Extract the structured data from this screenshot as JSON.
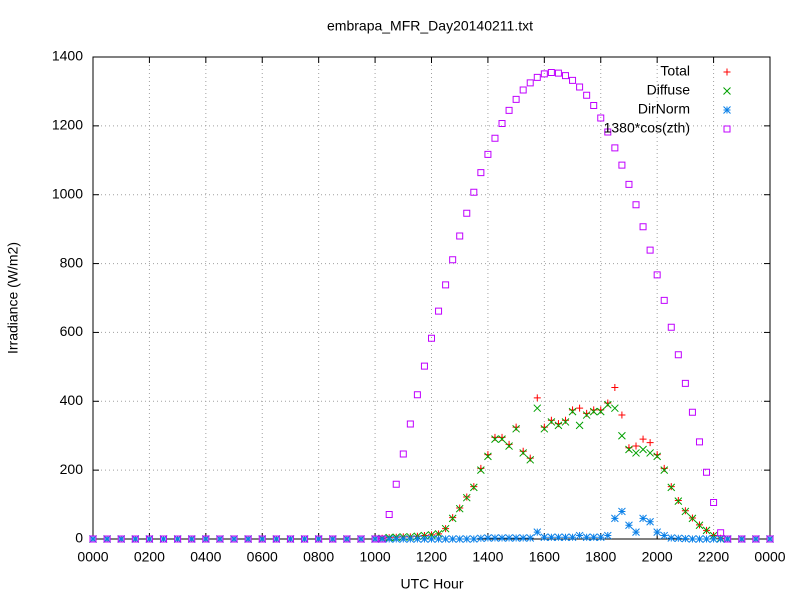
{
  "chart_data": {
    "type": "scatter",
    "title": "embrapa_MFR_Day20140211.txt",
    "x_label": "UTC Hour",
    "y_label": "Irradiance (W/m2)",
    "x": [
      0,
      0.5,
      1,
      1.5,
      2,
      2.5,
      3,
      3.5,
      4,
      4.5,
      5,
      5.5,
      6,
      6.5,
      7,
      7.5,
      8,
      8.5,
      9,
      9.5,
      10,
      10.25,
      10.5,
      10.75,
      11,
      11.25,
      11.5,
      11.75,
      12,
      12.25,
      12.5,
      12.75,
      13,
      13.25,
      13.5,
      13.75,
      14,
      14.25,
      14.5,
      14.75,
      15,
      15.25,
      15.5,
      15.75,
      16,
      16.25,
      16.5,
      16.75,
      17,
      17.25,
      17.5,
      17.75,
      18,
      18.25,
      18.5,
      18.75,
      19,
      19.25,
      19.5,
      19.75,
      20,
      20.25,
      20.5,
      20.75,
      21,
      21.25,
      21.5,
      21.75,
      22,
      22.25,
      22.5,
      23,
      23.5,
      24
    ],
    "series": [
      {
        "name": "Total",
        "color": "#ff0000",
        "marker": "plus",
        "values": [
          0,
          0,
          0,
          0,
          0,
          0,
          0,
          0,
          0,
          0,
          0,
          0,
          0,
          0,
          0,
          0,
          0,
          0,
          0,
          0,
          0,
          2,
          4,
          5,
          6,
          6,
          8,
          10,
          12,
          15,
          30,
          62,
          90,
          122,
          152,
          205,
          245,
          295,
          295,
          275,
          325,
          255,
          235,
          410,
          325,
          345,
          335,
          345,
          375,
          380,
          365,
          375,
          375,
          395,
          440,
          360,
          265,
          270,
          290,
          280,
          245,
          205,
          152,
          112,
          82,
          61,
          41,
          25,
          10,
          2,
          0,
          0,
          0,
          0
        ]
      },
      {
        "name": "Diffuse",
        "color": "#00a000",
        "marker": "cross",
        "values": [
          0,
          0,
          0,
          0,
          0,
          0,
          0,
          0,
          0,
          0,
          0,
          0,
          0,
          0,
          0,
          0,
          0,
          0,
          0,
          0,
          0,
          2,
          4,
          5,
          6,
          6,
          8,
          10,
          12,
          15,
          30,
          60,
          88,
          120,
          150,
          200,
          240,
          290,
          290,
          270,
          320,
          250,
          230,
          380,
          320,
          340,
          330,
          340,
          370,
          330,
          360,
          370,
          370,
          390,
          380,
          300,
          260,
          250,
          260,
          250,
          240,
          200,
          150,
          110,
          80,
          60,
          40,
          25,
          10,
          2,
          0,
          0,
          0,
          0
        ]
      },
      {
        "name": "DirNorm",
        "color": "#0a80e8",
        "marker": "star",
        "values": [
          0,
          0,
          0,
          0,
          0,
          0,
          0,
          0,
          0,
          0,
          0,
          0,
          0,
          0,
          0,
          0,
          0,
          0,
          0,
          0,
          0,
          0,
          0,
          0,
          0,
          0,
          0,
          0,
          0,
          0,
          0,
          0,
          0,
          0,
          0,
          2,
          3,
          3,
          3,
          3,
          3,
          3,
          3,
          20,
          5,
          5,
          5,
          5,
          5,
          10,
          5,
          5,
          5,
          10,
          60,
          80,
          40,
          20,
          60,
          50,
          20,
          10,
          3,
          2,
          1,
          0,
          0,
          0,
          0,
          0,
          0,
          0,
          0,
          0
        ]
      },
      {
        "name": "1380*cos(zth)",
        "color": "#c000ff",
        "marker": "square",
        "values": [
          0,
          0,
          0,
          0,
          0,
          0,
          0,
          0,
          0,
          0,
          0,
          0,
          0,
          0,
          0,
          0,
          0,
          0,
          0,
          0,
          0,
          0,
          71,
          159,
          247,
          334,
          419,
          502,
          583,
          662,
          738,
          811,
          880,
          946,
          1007,
          1064,
          1117,
          1164,
          1207,
          1245,
          1277,
          1304,
          1325,
          1341,
          1351,
          1355,
          1353,
          1346,
          1332,
          1313,
          1289,
          1259,
          1223,
          1182,
          1136,
          1086,
          1030,
          971,
          907,
          839,
          767,
          693,
          615,
          535,
          452,
          368,
          282,
          194,
          106,
          18,
          0,
          0,
          0,
          0
        ]
      }
    ],
    "xlim": [
      0,
      24
    ],
    "xticks": [
      {
        "value": 0,
        "label": "0000"
      },
      {
        "value": 2,
        "label": "0200"
      },
      {
        "value": 4,
        "label": "0400"
      },
      {
        "value": 6,
        "label": "0600"
      },
      {
        "value": 8,
        "label": "0800"
      },
      {
        "value": 10,
        "label": "1000"
      },
      {
        "value": 12,
        "label": "1200"
      },
      {
        "value": 14,
        "label": "1400"
      },
      {
        "value": 16,
        "label": "1600"
      },
      {
        "value": 18,
        "label": "1800"
      },
      {
        "value": 20,
        "label": "2000"
      },
      {
        "value": 22,
        "label": "2200"
      },
      {
        "value": 24,
        "label": "0000"
      }
    ],
    "ylim": [
      0,
      1400
    ],
    "yticks": [
      0,
      200,
      400,
      600,
      800,
      1000,
      1200,
      1400
    ],
    "grid": true,
    "legend": "top-right"
  }
}
